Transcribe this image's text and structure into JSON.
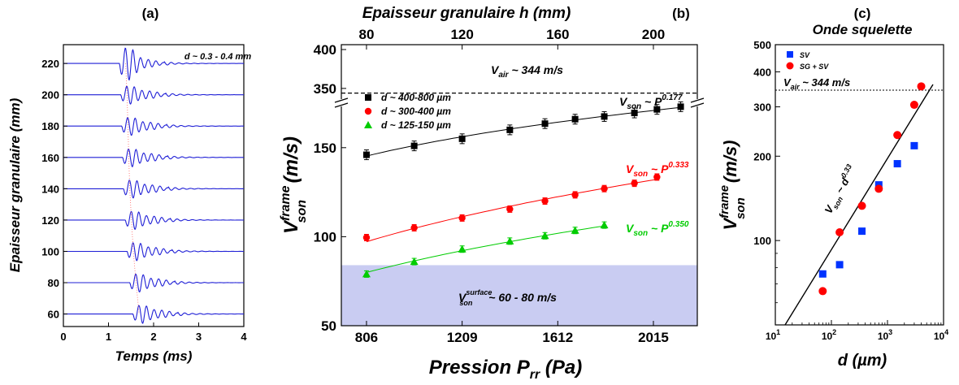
{
  "chart_data": [
    {
      "type": "line",
      "panel_label": "(a)",
      "xlabel": "Temps (ms)",
      "ylabel": "Epaisseur granulaire (mm)",
      "xlim": [
        0,
        4
      ],
      "ylim": [
        52,
        232
      ],
      "x_ticks": [
        "0",
        "1",
        "2",
        "3",
        "4"
      ],
      "y_ticks": [
        "60",
        "80",
        "100",
        "120",
        "140",
        "160",
        "180",
        "200",
        "220"
      ],
      "annotation": "d ~ 0.3 - 0.4 mm",
      "series_color": "#1f1fd6",
      "traces": [
        {
          "baseline": 220,
          "arrival_ms": 1.33
        },
        {
          "baseline": 200,
          "arrival_ms": 1.36
        },
        {
          "baseline": 180,
          "arrival_ms": 1.38
        },
        {
          "baseline": 160,
          "arrival_ms": 1.4
        },
        {
          "baseline": 140,
          "arrival_ms": 1.42
        },
        {
          "baseline": 120,
          "arrival_ms": 1.46
        },
        {
          "baseline": 100,
          "arrival_ms": 1.5
        },
        {
          "baseline": 80,
          "arrival_ms": 1.56
        },
        {
          "baseline": 60,
          "arrival_ms": 1.63
        }
      ]
    },
    {
      "type": "scatter",
      "panel_label": "(b)",
      "top_xlabel": "Epaisseur granulaire h (mm)",
      "top_x_ticks": [
        "80",
        "120",
        "160",
        "200"
      ],
      "xlabel_main": "Pression P",
      "xlabel_sub": "rr",
      "xlabel_unit": " (Pa)",
      "ylabel_main": "V",
      "ylabel_sup": "frame",
      "ylabel_sub": "son",
      "ylabel_unit": " (m/s)",
      "x_ticks": [
        "806",
        "1209",
        "1612",
        "2015"
      ],
      "y_ticks_lower": [
        "50",
        "100",
        "150"
      ],
      "y_ticks_upper": [
        "350",
        "400"
      ],
      "xlim": [
        700,
        2200
      ],
      "series": [
        {
          "name": "d ~ 400-800 µm",
          "color": "#000000",
          "marker": "square",
          "x": [
            806,
            1007,
            1209,
            1410,
            1558,
            1685,
            1808,
            1935,
            2030,
            2130
          ],
          "y": [
            146,
            151,
            155,
            160,
            163.5,
            166,
            167.5,
            169.5,
            171.5,
            173
          ]
        },
        {
          "name": "d ~ 300-400 µm",
          "color": "#ff0000",
          "marker": "circle",
          "x": [
            806,
            1007,
            1209,
            1410,
            1558,
            1685,
            1808,
            1935,
            2030
          ],
          "y": [
            99.5,
            105,
            110.5,
            115.5,
            120,
            123.5,
            127,
            130,
            133.5
          ]
        },
        {
          "name": "d ~ 125-150 µm",
          "color": "#00cc00",
          "marker": "triangle",
          "x": [
            806,
            1007,
            1209,
            1410,
            1558,
            1685,
            1808
          ],
          "y": [
            79,
            86,
            93,
            97.5,
            100.5,
            103.5,
            106.5
          ]
        }
      ],
      "annotations": {
        "vair_main": "V",
        "vair_sub": "air",
        "vair_rest": " ~ 344 m/s",
        "vsurf_main": "V",
        "vsurf_sup": "surface",
        "vsurf_sub": "son",
        "vsurf_rest": " ~ 60 - 80 m/s",
        "law_black": "V",
        "law_black_sub": "son",
        "law_black_mid": " ~ P",
        "law_black_sup": "0.177",
        "law_red": "V",
        "law_red_sub": "son",
        "law_red_mid": " ~ P",
        "law_red_sup": "0.333",
        "law_green": "V",
        "law_green_sub": "son",
        "law_green_mid": " ~ P",
        "law_green_sup": "0.350"
      },
      "band_color": "#c9ccf2",
      "vair_value": 344
    },
    {
      "type": "scatter",
      "panel_label": "(c)",
      "title": "Onde squelette",
      "xlabel": "d (µm)",
      "x_scale": "log",
      "y_scale": "log",
      "xlim": [
        10,
        10000
      ],
      "ylim": [
        50,
        500
      ],
      "x_ticks": [
        "10",
        "10",
        "10",
        "10"
      ],
      "x_ticks_exp": [
        "1",
        "2",
        "3",
        "4"
      ],
      "y_ticks": [
        "100",
        "200",
        "300",
        "400",
        "500"
      ],
      "ylabel_main": "V",
      "ylabel_sup": "frame",
      "ylabel_sub": "son",
      "ylabel_unit": " (m/s)",
      "series": [
        {
          "name": "SV",
          "color": "#0033ff",
          "marker": "square",
          "x": [
            70,
            140,
            350,
            700,
            1500,
            3000
          ],
          "y": [
            76,
            82,
            108,
            158,
            188,
            218
          ]
        },
        {
          "name": "SG + SV",
          "color": "#ff0000",
          "marker": "circle",
          "x": [
            70,
            140,
            350,
            700,
            1500,
            3000,
            4000
          ],
          "y": [
            66,
            107,
            133,
            153,
            238,
            305,
            355
          ]
        }
      ],
      "vair_main": "V",
      "vair_sub": "air",
      "vair_rest": " ~ 344 m/s",
      "law_main": "V",
      "law_sub": "son",
      "law_mid": " ~ d",
      "law_sup": "0.33"
    }
  ]
}
